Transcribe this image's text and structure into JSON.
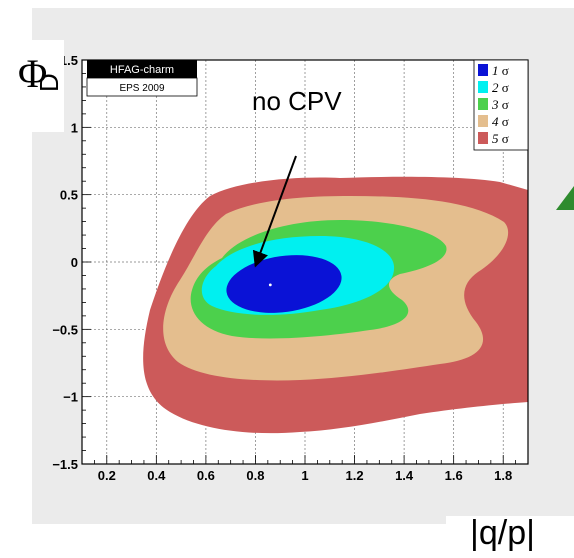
{
  "chart_data": {
    "type": "contour",
    "badge": {
      "top": "HFAG-charm",
      "bottom": "EPS 2009"
    },
    "annotation": "no CPV",
    "xlabel": "|q/p|",
    "ylabel_symbol": "Φ",
    "ylabel_subscript": "D",
    "xlim": [
      0.1,
      1.9
    ],
    "ylim": [
      -1.5,
      1.5
    ],
    "x_ticks": [
      "0.2",
      "0.4",
      "0.6",
      "0.8",
      "1",
      "1.2",
      "1.4",
      "1.6",
      "1.8"
    ],
    "y_ticks": [
      "1.5",
      "1",
      "0.5",
      "0",
      "−0.5",
      "−1",
      "−1.5"
    ],
    "grid": true,
    "legend_position": "top-right",
    "legend": [
      {
        "label": "1 σ",
        "color": "#0a12d6"
      },
      {
        "label": "2 σ",
        "color": "#00f0f0"
      },
      {
        "label": "3 σ",
        "color": "#4cd04c"
      },
      {
        "label": "4 σ",
        "color": "#e4be8e"
      },
      {
        "label": "5 σ",
        "color": "#cc5a5a"
      }
    ],
    "best_fit_point": {
      "x": 0.86,
      "y": -0.17
    },
    "annotation_arrow_target": {
      "x": 0.8,
      "y": -0.03
    }
  }
}
